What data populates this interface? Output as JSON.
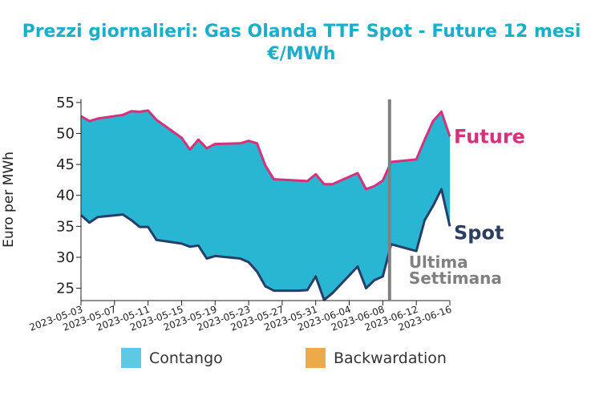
{
  "chart_data": {
    "type": "area",
    "title": "Prezzi giornalieri: Gas Olanda TTF Spot - Future 12 mesi",
    "subtitle": "€/MWh",
    "ylabel": "Euro per MWh",
    "xlabel": "",
    "ylim": [
      23,
      55.5
    ],
    "yticks": [
      25,
      30,
      35,
      40,
      45,
      50,
      55
    ],
    "xlim": [
      "2023-05-03",
      "2023-06-16"
    ],
    "xticks": [
      "2023-05-03",
      "2023-05-07",
      "2023-05-11",
      "2023-05-15",
      "2023-05-19",
      "2023-05-23",
      "2023-05-27",
      "2023-05-31",
      "2023-06-04",
      "2023-06-08",
      "2023-06-12",
      "2023-06-16"
    ],
    "x": [
      "2023-05-03",
      "2023-05-04",
      "2023-05-05",
      "2023-05-08",
      "2023-05-09",
      "2023-05-10",
      "2023-05-11",
      "2023-05-12",
      "2023-05-15",
      "2023-05-16",
      "2023-05-17",
      "2023-05-18",
      "2023-05-19",
      "2023-05-22",
      "2023-05-23",
      "2023-05-24",
      "2023-05-25",
      "2023-05-26",
      "2023-05-29",
      "2023-05-30",
      "2023-05-31",
      "2023-06-01",
      "2023-06-02",
      "2023-06-05",
      "2023-06-06",
      "2023-06-07",
      "2023-06-08",
      "2023-06-09",
      "2023-06-12",
      "2023-06-13",
      "2023-06-14",
      "2023-06-15",
      "2023-06-16"
    ],
    "series": [
      {
        "name": "Future",
        "color": "#d6317a",
        "label_color": "#d6317a",
        "values": [
          52.8,
          52.0,
          52.4,
          53.0,
          53.6,
          53.5,
          53.7,
          52.2,
          49.3,
          47.4,
          49.0,
          47.6,
          48.3,
          48.4,
          48.8,
          48.4,
          44.8,
          42.6,
          42.4,
          42.3,
          43.4,
          41.8,
          41.8,
          43.6,
          41.0,
          41.5,
          42.4,
          45.4,
          45.8,
          49.0,
          52.0,
          53.5,
          49.5
        ]
      },
      {
        "name": "Spot",
        "color": "#263f68",
        "label_color": "#2b3d60",
        "values": [
          36.8,
          35.6,
          36.5,
          36.9,
          36.0,
          34.9,
          34.9,
          32.8,
          32.2,
          31.7,
          31.9,
          29.8,
          30.2,
          29.8,
          29.2,
          27.7,
          25.3,
          24.6,
          24.6,
          24.7,
          26.9,
          23.1,
          24.2,
          28.5,
          25.0,
          26.3,
          26.9,
          32.1,
          31.0,
          36.0,
          38.3,
          41.0,
          35.0
        ]
      }
    ],
    "fills": [
      {
        "name": "Contango",
        "color": "#29b6d3",
        "legend_color": "#5ec9e3"
      },
      {
        "name": "Backwardation",
        "color": "#ecaa4a"
      }
    ],
    "vertical_line": {
      "x": "2023-06-09",
      "color": "#808080",
      "annotation": [
        "Ultima",
        "Settimana"
      ]
    },
    "legend_position": "bottom",
    "grid": false
  }
}
